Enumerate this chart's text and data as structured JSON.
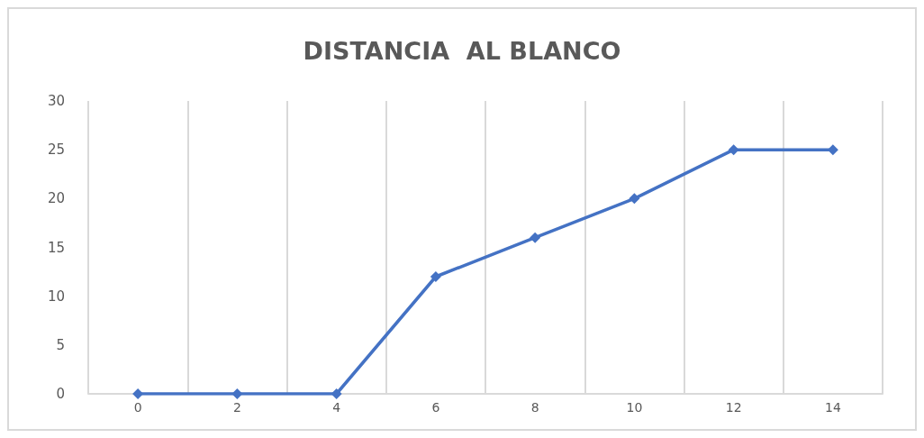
{
  "chart_data": {
    "type": "line",
    "title": "DISTANCIA  AL BLANCO",
    "categories": [
      "0",
      "2",
      "4",
      "6",
      "8",
      "10",
      "12",
      "14"
    ],
    "series": [
      {
        "color": "#4472c4",
        "values": [
          0,
          0,
          0,
          12,
          16,
          20,
          25,
          25
        ]
      }
    ],
    "ylim": [
      0,
      30
    ],
    "yticks": [
      0,
      5,
      10,
      15,
      20,
      25,
      30
    ],
    "grid": "x",
    "marker": "diamond",
    "line_style": "solid"
  }
}
